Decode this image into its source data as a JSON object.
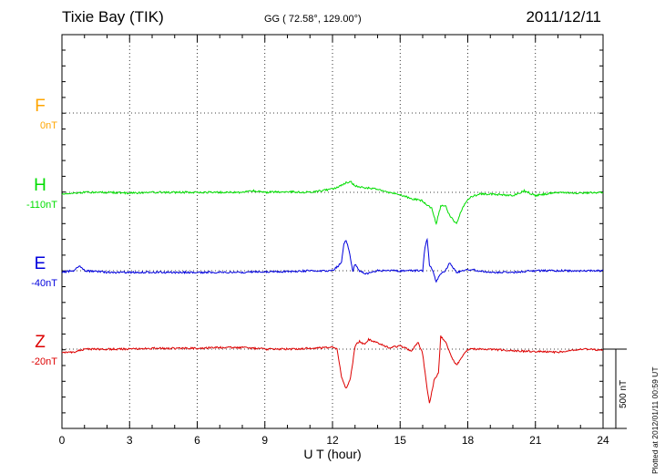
{
  "header": {
    "station": "Tixie Bay (TIK)",
    "coordinates": "GG ( 72.58°, 129.00°)",
    "date": "2011/12/11"
  },
  "footer_note": "Plotted at 2012/01/11 00:59 UT",
  "scale_bar_label": "500 nT",
  "chart_data": {
    "type": "line",
    "title": "Tixie Bay (TIK)",
    "xlabel": "U T (hour)",
    "ylabel": "",
    "xlim": [
      0,
      24
    ],
    "xticks": [
      0,
      3,
      6,
      9,
      12,
      15,
      18,
      21,
      24
    ],
    "scale_bar_nT": 500,
    "grid": true,
    "series": [
      {
        "name": "F",
        "baseline_label": "0nT",
        "color": "#ffa500",
        "x": [],
        "values": []
      },
      {
        "name": "H",
        "baseline_label": "-110nT",
        "color": "#00dd00",
        "x": [
          0,
          1,
          2,
          3,
          4,
          5,
          6,
          7,
          8,
          8.5,
          9,
          10,
          11,
          12,
          12.3,
          12.6,
          12.8,
          13,
          13.4,
          14,
          14.5,
          15,
          15.5,
          16,
          16.2,
          16.4,
          16.5,
          16.6,
          16.7,
          16.8,
          17,
          17.2,
          17.5,
          17.7,
          18,
          18.5,
          19,
          20,
          20.5,
          21,
          21.5,
          22,
          23,
          24
        ],
        "values": [
          -10,
          0,
          0,
          -5,
          0,
          0,
          0,
          0,
          0,
          10,
          0,
          5,
          0,
          20,
          35,
          60,
          70,
          40,
          30,
          20,
          0,
          -15,
          -40,
          -55,
          -80,
          -100,
          -150,
          -200,
          -140,
          -90,
          -80,
          -150,
          -200,
          -120,
          -40,
          -10,
          -10,
          -20,
          10,
          -20,
          -10,
          0,
          -5,
          0
        ]
      },
      {
        "name": "E",
        "baseline_label": "-40nT",
        "color": "#0000dd",
        "x": [
          0,
          0.5,
          0.8,
          1,
          2,
          3,
          4,
          5,
          6,
          7,
          8,
          9,
          10,
          11,
          12,
          12.4,
          12.5,
          12.6,
          12.7,
          12.9,
          13,
          13.2,
          13.5,
          14,
          15,
          15.5,
          16,
          16.1,
          16.2,
          16.3,
          16.5,
          16.6,
          16.8,
          17,
          17.2,
          17.5,
          18,
          19,
          20,
          21,
          22,
          23,
          24
        ],
        "values": [
          -10,
          0,
          30,
          0,
          -10,
          -10,
          -10,
          -10,
          -10,
          -10,
          -10,
          -5,
          -5,
          0,
          0,
          50,
          170,
          190,
          150,
          0,
          40,
          0,
          -20,
          0,
          0,
          0,
          0,
          150,
          200,
          40,
          -20,
          -70,
          -20,
          0,
          50,
          -10,
          10,
          -10,
          -10,
          0,
          0,
          0,
          0
        ]
      },
      {
        "name": "Z",
        "baseline_label": "-20nT",
        "color": "#dd0000",
        "x": [
          0,
          0.5,
          1,
          2,
          3,
          4,
          5,
          6,
          7,
          8,
          9,
          10,
          11,
          12,
          12.2,
          12.4,
          12.6,
          12.8,
          13,
          13.2,
          13.4,
          13.6,
          14,
          14.5,
          15,
          15.5,
          15.8,
          16,
          16.2,
          16.3,
          16.5,
          16.7,
          16.8,
          17,
          17.3,
          17.5,
          17.7,
          18,
          19,
          20,
          21,
          22,
          23,
          24
        ],
        "values": [
          -20,
          -20,
          0,
          0,
          0,
          5,
          5,
          5,
          10,
          10,
          0,
          0,
          5,
          10,
          0,
          -180,
          -250,
          -180,
          20,
          50,
          30,
          60,
          40,
          10,
          20,
          -10,
          40,
          -30,
          -250,
          -340,
          -200,
          -150,
          80,
          50,
          -60,
          -100,
          -60,
          0,
          0,
          -10,
          -15,
          -20,
          0,
          -5
        ]
      }
    ]
  }
}
